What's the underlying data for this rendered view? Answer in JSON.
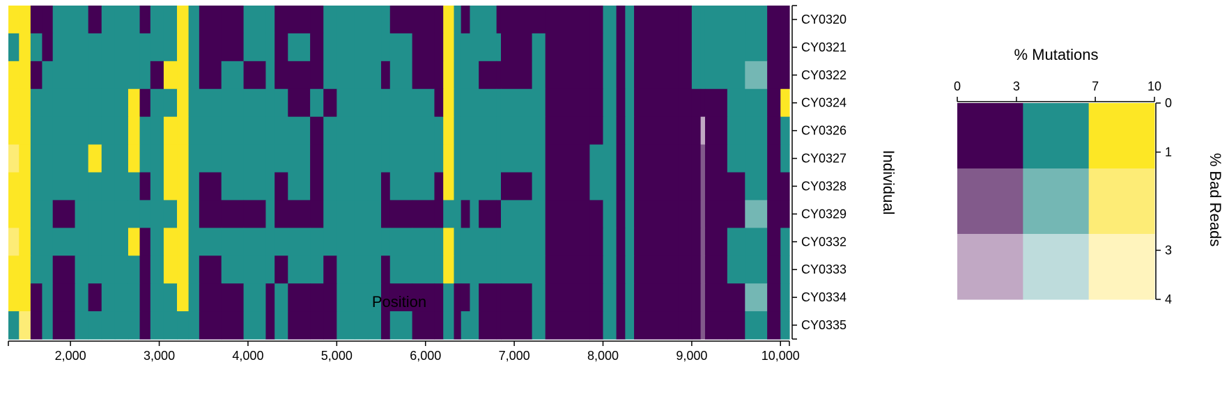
{
  "chart_data": [
    {
      "type": "heatmap",
      "xlabel": "Position",
      "ylabel": "Individual",
      "xlim": [
        1300,
        10100
      ],
      "x_ticks": [
        2000,
        3000,
        4000,
        5000,
        6000,
        7000,
        8000,
        9000,
        10000
      ],
      "x_tick_labels": [
        "2,000",
        "3,000",
        "4,000",
        "5,000",
        "6,000",
        "7,000",
        "8,000",
        "9,000",
        "10,000"
      ],
      "individuals": [
        "CY0320",
        "CY0321",
        "CY0322",
        "CY0324",
        "CY0326",
        "CY0327",
        "CY0328",
        "CY0329",
        "CY0332",
        "CY0333",
        "CY0334",
        "CY0335"
      ],
      "column_edges": [
        1300,
        1420,
        1550,
        1680,
        1800,
        2050,
        2200,
        2350,
        2500,
        2650,
        2780,
        2900,
        3050,
        3200,
        3330,
        3450,
        3700,
        3950,
        4200,
        4300,
        4450,
        4700,
        4850,
        5000,
        5200,
        5350,
        5500,
        5600,
        5850,
        6100,
        6200,
        6320,
        6400,
        6500,
        6600,
        6800,
        6850,
        7200,
        7350,
        7850,
        8000,
        8150,
        8250,
        8350,
        8850,
        9000,
        9100,
        9150,
        9400,
        9600,
        9850,
        10000,
        10100
      ],
      "cells": [
        [
          "Y0",
          "Y0",
          "D0",
          "D0",
          "T0",
          "T0",
          "D0",
          "T0",
          "T0",
          "T0",
          "D0",
          "T0",
          "T0",
          "Y0",
          "T0",
          "D0",
          "D0",
          "T0",
          "T0",
          "D0",
          "D0",
          "D0",
          "T0",
          "T0",
          "T0",
          "T0",
          "T0",
          "D0",
          "D0",
          "D0",
          "Y0",
          "T0",
          "D0",
          "T0",
          "T0",
          "D0",
          "D0",
          "D0",
          "D0",
          "D0",
          "T0",
          "D0",
          "T0",
          "D0",
          "D0",
          "T0",
          "T0",
          "T0",
          "T0",
          "T0",
          "D0",
          "D0"
        ],
        [
          "T0",
          "Y0",
          "T0",
          "D0",
          "T0",
          "T0",
          "T0",
          "T0",
          "T0",
          "T0",
          "T0",
          "T0",
          "T0",
          "Y0",
          "T0",
          "D0",
          "D0",
          "T0",
          "T0",
          "D0",
          "T0",
          "D0",
          "T0",
          "T0",
          "T0",
          "T0",
          "T0",
          "T0",
          "D0",
          "D0",
          "Y0",
          "T0",
          "T0",
          "T0",
          "T0",
          "T0",
          "D0",
          "T0",
          "D0",
          "D0",
          "T0",
          "D0",
          "T0",
          "D0",
          "D0",
          "T0",
          "T0",
          "T0",
          "T0",
          "T0",
          "D0",
          "D0"
        ],
        [
          "Y0",
          "Y0",
          "D0",
          "T0",
          "T0",
          "T0",
          "T0",
          "T0",
          "T0",
          "T0",
          "T0",
          "D0",
          "Y0",
          "Y0",
          "T0",
          "D0",
          "T0",
          "D0",
          "T0",
          "D0",
          "D0",
          "D0",
          "T0",
          "T0",
          "T0",
          "T0",
          "D0",
          "T0",
          "D0",
          "D0",
          "Y0",
          "T0",
          "T0",
          "T0",
          "D0",
          "D0",
          "D0",
          "T0",
          "D0",
          "D0",
          "T0",
          "D0",
          "T0",
          "D0",
          "D0",
          "T0",
          "T0",
          "T0",
          "T0",
          "T1",
          "D0",
          "D0"
        ],
        [
          "Y0",
          "Y0",
          "T0",
          "T0",
          "T0",
          "T0",
          "T0",
          "T0",
          "T0",
          "Y0",
          "D0",
          "T0",
          "T0",
          "Y0",
          "T0",
          "T0",
          "T0",
          "T0",
          "T0",
          "T0",
          "D0",
          "T0",
          "D0",
          "T0",
          "T0",
          "T0",
          "T0",
          "T0",
          "T0",
          "D0",
          "Y0",
          "T0",
          "T0",
          "T0",
          "T0",
          "T0",
          "T0",
          "T0",
          "D0",
          "D0",
          "T0",
          "D0",
          "T0",
          "D0",
          "D0",
          "D0",
          "D0",
          "D0",
          "T0",
          "T0",
          "D0",
          "Y0"
        ],
        [
          "Y0",
          "Y0",
          "T0",
          "T0",
          "T0",
          "T0",
          "T0",
          "T0",
          "T0",
          "Y0",
          "T0",
          "T0",
          "Y0",
          "Y0",
          "T0",
          "T0",
          "T0",
          "T0",
          "T0",
          "T0",
          "T0",
          "D0",
          "T0",
          "T0",
          "T0",
          "T0",
          "T0",
          "T0",
          "T0",
          "T0",
          "Y0",
          "T0",
          "T0",
          "T0",
          "T0",
          "T0",
          "T0",
          "T0",
          "D0",
          "D0",
          "T0",
          "D0",
          "T0",
          "D0",
          "D0",
          "D0",
          "D2",
          "D0",
          "T0",
          "T0",
          "D0",
          "T0"
        ],
        [
          "Y1",
          "Y0",
          "T0",
          "T0",
          "T0",
          "T0",
          "Y0",
          "T0",
          "T0",
          "Y0",
          "T0",
          "T0",
          "Y0",
          "Y0",
          "T0",
          "T0",
          "T0",
          "T0",
          "T0",
          "T0",
          "T0",
          "D0",
          "T0",
          "T0",
          "T0",
          "T0",
          "T0",
          "T0",
          "T0",
          "T0",
          "Y0",
          "T0",
          "T0",
          "T0",
          "T0",
          "T0",
          "T0",
          "T0",
          "D0",
          "T0",
          "T0",
          "D0",
          "T0",
          "D0",
          "D0",
          "D0",
          "D1",
          "D0",
          "T0",
          "T0",
          "D0",
          "T0"
        ],
        [
          "Y0",
          "Y0",
          "T0",
          "T0",
          "T0",
          "T0",
          "T0",
          "T0",
          "T0",
          "T0",
          "D0",
          "T0",
          "Y0",
          "Y0",
          "T0",
          "D0",
          "T0",
          "T0",
          "T0",
          "D0",
          "T0",
          "D0",
          "T0",
          "T0",
          "T0",
          "T0",
          "D0",
          "T0",
          "T0",
          "D0",
          "Y0",
          "T0",
          "T0",
          "T0",
          "T0",
          "T0",
          "D0",
          "T0",
          "D0",
          "T0",
          "T0",
          "D0",
          "T0",
          "D0",
          "D0",
          "D0",
          "D1",
          "D0",
          "D0",
          "T0",
          "D0",
          "D0"
        ],
        [
          "Y0",
          "Y0",
          "T0",
          "T0",
          "D0",
          "T0",
          "T0",
          "T0",
          "T0",
          "T0",
          "T0",
          "T0",
          "T0",
          "Y0",
          "T0",
          "D0",
          "D0",
          "D0",
          "T0",
          "D0",
          "D0",
          "D0",
          "T0",
          "T0",
          "T0",
          "T0",
          "D0",
          "D0",
          "D0",
          "D0",
          "T0",
          "T0",
          "D0",
          "T0",
          "D0",
          "D0",
          "T0",
          "T0",
          "D0",
          "D0",
          "T0",
          "D0",
          "T0",
          "D0",
          "D0",
          "D0",
          "D1",
          "D0",
          "D0",
          "T1",
          "D0",
          "D0"
        ],
        [
          "Y1",
          "Y0",
          "T0",
          "T0",
          "T0",
          "T0",
          "T0",
          "T0",
          "T0",
          "Y0",
          "D0",
          "T0",
          "Y0",
          "Y0",
          "T0",
          "T0",
          "T0",
          "T0",
          "T0",
          "T0",
          "T0",
          "T0",
          "T0",
          "T0",
          "T0",
          "T0",
          "T0",
          "T0",
          "T0",
          "T0",
          "Y0",
          "T0",
          "T0",
          "T0",
          "T0",
          "T0",
          "T0",
          "T0",
          "D0",
          "D0",
          "T0",
          "D0",
          "T0",
          "D0",
          "D0",
          "D0",
          "D1",
          "D0",
          "T0",
          "T0",
          "D0",
          "T0"
        ],
        [
          "Y0",
          "Y0",
          "T0",
          "T0",
          "D0",
          "T0",
          "T0",
          "T0",
          "T0",
          "T0",
          "D0",
          "T0",
          "Y0",
          "Y0",
          "T0",
          "D0",
          "T0",
          "T0",
          "T0",
          "D0",
          "T0",
          "T0",
          "D0",
          "T0",
          "T0",
          "T0",
          "D0",
          "T0",
          "T0",
          "T0",
          "Y0",
          "T0",
          "T0",
          "T0",
          "T0",
          "T0",
          "T0",
          "T0",
          "D0",
          "D0",
          "T0",
          "D0",
          "T0",
          "D0",
          "D0",
          "D0",
          "D1",
          "D0",
          "T0",
          "T0",
          "D0",
          "T0"
        ],
        [
          "Y0",
          "Y0",
          "D0",
          "T0",
          "D0",
          "T0",
          "D0",
          "T0",
          "T0",
          "T0",
          "D0",
          "T0",
          "T0",
          "Y0",
          "T0",
          "D0",
          "D0",
          "T0",
          "D0",
          "T0",
          "D0",
          "D0",
          "D0",
          "T0",
          "T0",
          "T0",
          "D0",
          "D0",
          "D0",
          "D0",
          "T0",
          "D0",
          "D0",
          "T0",
          "D0",
          "D0",
          "D0",
          "T0",
          "D0",
          "D0",
          "T0",
          "D0",
          "T0",
          "D0",
          "D0",
          "D0",
          "D1",
          "D0",
          "D0",
          "T1",
          "D0",
          "T0"
        ],
        [
          "T0",
          "Y1",
          "D0",
          "T0",
          "D0",
          "T0",
          "T0",
          "T0",
          "T0",
          "T0",
          "D0",
          "T0",
          "T0",
          "T0",
          "T0",
          "D0",
          "D0",
          "T0",
          "D0",
          "T0",
          "D0",
          "D0",
          "D0",
          "T0",
          "T0",
          "T0",
          "D0",
          "T0",
          "D0",
          "D0",
          "T0",
          "D0",
          "T0",
          "T0",
          "D0",
          "D0",
          "D0",
          "T0",
          "D0",
          "D0",
          "T0",
          "D0",
          "T0",
          "D0",
          "D0",
          "D0",
          "D1",
          "D0",
          "D0",
          "T0",
          "D0",
          "T0"
        ]
      ],
      "palette": {
        "D0": "#440154",
        "D1": "#825a8b",
        "D2": "#c1a8c4",
        "T0": "#21908c",
        "T1": "#74b7b4",
        "T2": "#bedcdc",
        "Y0": "#fde725",
        "Y1": "#fdec76",
        "Y2": "#fff4bd"
      }
    },
    {
      "type": "heatmap",
      "title": "% Mutations",
      "ylabel": "% Bad Reads",
      "x_ticks": [
        0,
        3,
        7,
        10
      ],
      "y_ticks": [
        0,
        1,
        3,
        4
      ],
      "cells": [
        [
          "D0",
          "T0",
          "Y0"
        ],
        [
          "D1",
          "T1",
          "Y1"
        ],
        [
          "D2",
          "T2",
          "Y2"
        ]
      ]
    }
  ]
}
